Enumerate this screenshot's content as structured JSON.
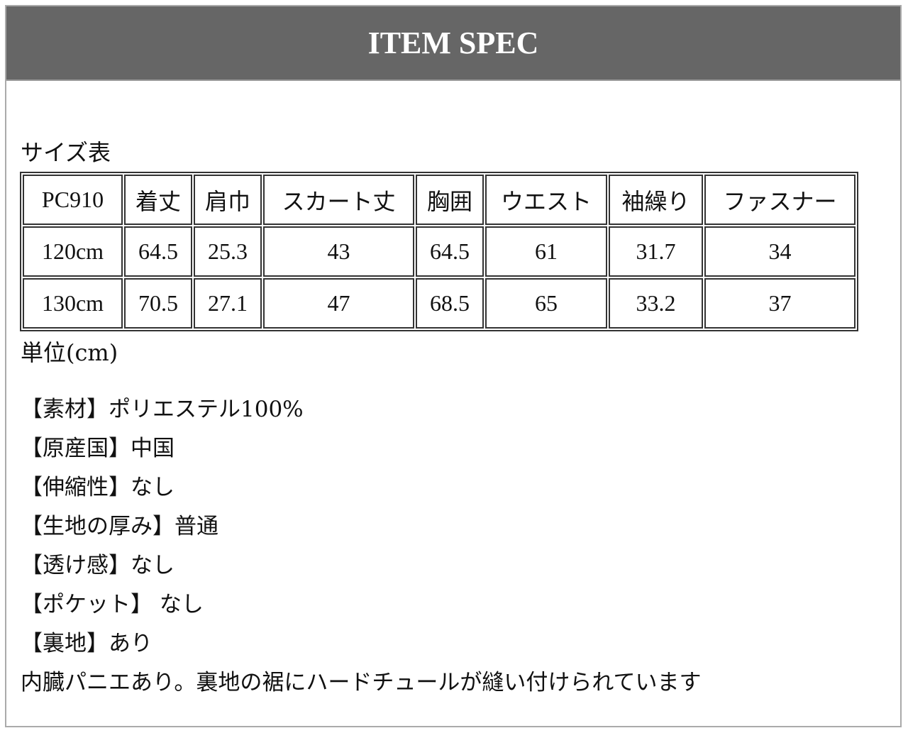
{
  "header": {
    "title": "ITEM SPEC"
  },
  "size_table": {
    "caption": "サイズ表",
    "headers": [
      "PC910",
      "着丈",
      "肩巾",
      "スカート丈",
      "胸囲",
      "ウエスト",
      "袖繰り",
      "ファスナー"
    ],
    "rows": [
      [
        "120cm",
        "64.5",
        "25.3",
        "43",
        "64.5",
        "61",
        "31.7",
        "34"
      ],
      [
        "130cm",
        "70.5",
        "27.1",
        "47",
        "68.5",
        "65",
        "33.2",
        "37"
      ]
    ],
    "unit": "単位(cm)"
  },
  "specs": [
    "【素材】ポリエステル100%",
    "【原産国】中国",
    "【伸縮性】なし",
    "【生地の厚み】普通",
    "【透け感】なし",
    "【ポケット】 なし",
    "【裏地】あり",
    "内臓パニエあり。裏地の裾にハードチュールが縫い付けられています"
  ]
}
